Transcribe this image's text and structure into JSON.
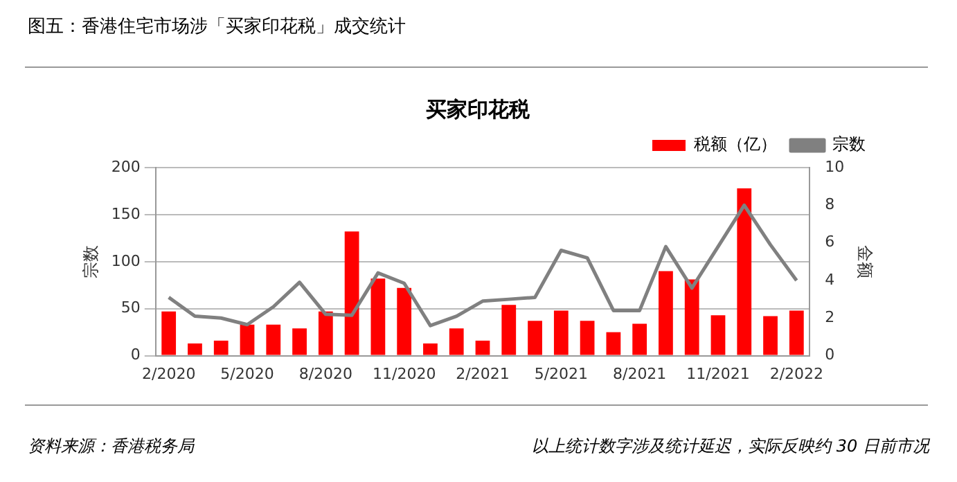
{
  "chart_data": {
    "type": "bar",
    "title": "图五：香港住宅市场涉「买家印花税」成交统计",
    "subtitle": "买家印花税",
    "ylabel": "宗数",
    "y2label": "金额",
    "categories": [
      "2/2020",
      null,
      null,
      "5/2020",
      null,
      null,
      "8/2020",
      null,
      null,
      "11/2020",
      null,
      null,
      "2/2021",
      null,
      null,
      "5/2021",
      null,
      null,
      "8/2021",
      null,
      null,
      "11/2021",
      null,
      null,
      "2/2022"
    ],
    "series": [
      {
        "name": "税额（亿）",
        "color": "#ff0000",
        "values": [
          47,
          13,
          16,
          33,
          33,
          29,
          47,
          132,
          82,
          72,
          13,
          29,
          16,
          54,
          37,
          48,
          37,
          25,
          34,
          90,
          81,
          43,
          178,
          42,
          48
        ]
      },
      {
        "name": "宗数",
        "type": "line",
        "axis": "y2",
        "color": "#808080",
        "values": [
          3.1,
          2.1,
          2.0,
          1.65,
          2.6,
          3.9,
          2.2,
          2.15,
          4.4,
          3.85,
          1.6,
          2.1,
          2.9,
          3.0,
          3.1,
          5.6,
          5.2,
          2.4,
          2.4,
          5.8,
          3.6,
          5.8,
          8.0,
          5.9,
          4.0
        ]
      }
    ],
    "ylim": [
      0,
      200
    ],
    "yticks": [
      0,
      50,
      100,
      150,
      200
    ],
    "y2lim": [
      0,
      10
    ],
    "y2ticks": [
      0,
      2,
      4,
      6,
      8,
      10
    ],
    "grid": "y",
    "legend": "top right",
    "marker": "none",
    "annotations": [
      "资料来源：香港税务局",
      "以上统计数字涉及统计延迟，实际反映约 30 日前市况"
    ]
  }
}
